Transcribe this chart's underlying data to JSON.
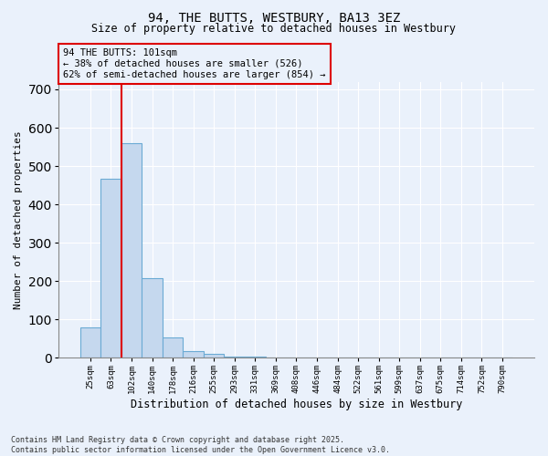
{
  "title": "94, THE BUTTS, WESTBURY, BA13 3EZ",
  "subtitle": "Size of property relative to detached houses in Westbury",
  "xlabel": "Distribution of detached houses by size in Westbury",
  "ylabel": "Number of detached properties",
  "categories": [
    "25sqm",
    "63sqm",
    "102sqm",
    "140sqm",
    "178sqm",
    "216sqm",
    "255sqm",
    "293sqm",
    "331sqm",
    "369sqm",
    "408sqm",
    "446sqm",
    "484sqm",
    "522sqm",
    "561sqm",
    "599sqm",
    "637sqm",
    "675sqm",
    "714sqm",
    "752sqm",
    "790sqm"
  ],
  "values": [
    78,
    467,
    560,
    207,
    54,
    18,
    9,
    4,
    2,
    1,
    1,
    0,
    0,
    0,
    0,
    0,
    0,
    0,
    0,
    0,
    0
  ],
  "bar_color": "#c5d8ee",
  "bar_edge_color": "#6aaad4",
  "bg_color": "#eaf1fb",
  "grid_color": "#ffffff",
  "redline_bin": 2,
  "annotation_title": "94 THE BUTTS: 101sqm",
  "annotation_line1": "← 38% of detached houses are smaller (526)",
  "annotation_line2": "62% of semi-detached houses are larger (854) →",
  "annotation_box_color": "#dd0000",
  "ylim": [
    0,
    720
  ],
  "yticks": [
    0,
    100,
    200,
    300,
    400,
    500,
    600,
    700
  ],
  "footer_line1": "Contains HM Land Registry data © Crown copyright and database right 2025.",
  "footer_line2": "Contains public sector information licensed under the Open Government Licence v3.0."
}
